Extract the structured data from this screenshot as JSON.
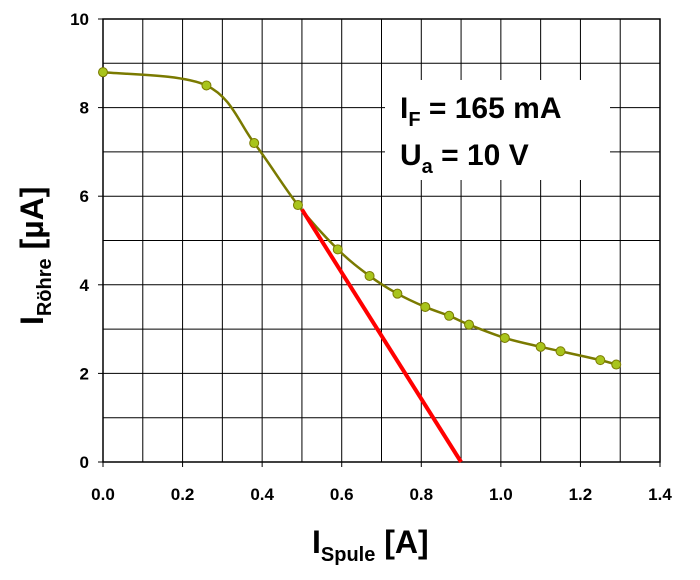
{
  "chart_data": {
    "type": "line",
    "x_axis": {
      "label_main": "I",
      "label_sub": "Spule",
      "label_unit": " [A]",
      "range": [
        0,
        1.4
      ],
      "ticks": [
        "0.0",
        "0.2",
        "0.4",
        "0.6",
        "0.8",
        "1.0",
        "1.2",
        "1.4"
      ]
    },
    "y_axis": {
      "label_main": "I",
      "label_sub": "Röhre",
      "label_unit": " [µA]",
      "range": [
        0,
        10
      ],
      "ticks": [
        "0",
        "2",
        "4",
        "6",
        "8",
        "10"
      ]
    },
    "grid": true,
    "annotations": {
      "line1_main": "I",
      "line1_sub": "F",
      "line1_rest": " = 165 mA",
      "line2_main": "U",
      "line2_sub": "a",
      "line2_rest": " = 10 V"
    },
    "series": [
      {
        "type": "measured",
        "color": "#7a7a00",
        "marker_color": "#a8c41c",
        "x": [
          0.0,
          0.26,
          0.38,
          0.49,
          0.59,
          0.67,
          0.74,
          0.81,
          0.87,
          0.92,
          1.01,
          1.1,
          1.15,
          1.25,
          1.29
        ],
        "y": [
          8.8,
          8.5,
          7.2,
          5.8,
          4.8,
          4.2,
          3.8,
          3.5,
          3.3,
          3.1,
          2.8,
          2.6,
          2.5,
          2.3,
          2.2
        ]
      },
      {
        "type": "tangent",
        "color": "#ff0000",
        "x": [
          0.5,
          0.9
        ],
        "y": [
          5.7,
          0.0
        ]
      }
    ]
  }
}
